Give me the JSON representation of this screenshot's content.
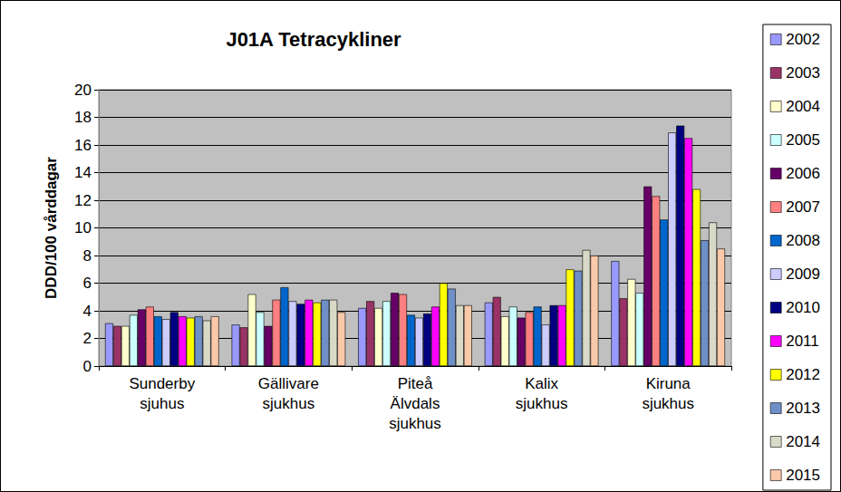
{
  "chart_data": {
    "type": "bar",
    "title": "J01A Tetracykliner",
    "ylabel": "DDD/100 vårddagar",
    "categories": [
      "Sunderby\nsjuhus",
      "Gällivare\nsjukhus",
      "Piteå\nÄlvdals\nsjukhus",
      "Kalix\nsjukhus",
      "Kiruna\nsjukhus"
    ],
    "series": [
      {
        "name": "2002",
        "color": "#9999FF",
        "values": [
          3.1,
          3.0,
          4.2,
          4.6,
          7.6
        ]
      },
      {
        "name": "2003",
        "color": "#993366",
        "values": [
          2.9,
          2.8,
          4.7,
          5.0,
          4.9
        ]
      },
      {
        "name": "2004",
        "color": "#FFFFCC",
        "values": [
          2.9,
          5.2,
          4.2,
          3.6,
          6.3
        ]
      },
      {
        "name": "2005",
        "color": "#CCFFFF",
        "values": [
          3.7,
          3.9,
          4.7,
          4.3,
          5.3
        ]
      },
      {
        "name": "2006",
        "color": "#660066",
        "values": [
          4.1,
          2.9,
          5.3,
          3.5,
          13.0
        ]
      },
      {
        "name": "2007",
        "color": "#FF8080",
        "values": [
          4.3,
          4.8,
          5.2,
          3.9,
          12.3
        ]
      },
      {
        "name": "2008",
        "color": "#0066CC",
        "values": [
          3.6,
          5.7,
          3.7,
          4.3,
          10.6
        ]
      },
      {
        "name": "2009",
        "color": "#CCCCFF",
        "values": [
          3.4,
          4.7,
          3.5,
          3.0,
          16.9
        ]
      },
      {
        "name": "2010",
        "color": "#000080",
        "values": [
          3.9,
          4.5,
          3.8,
          4.4,
          17.4
        ]
      },
      {
        "name": "2011",
        "color": "#FF00FF",
        "values": [
          3.6,
          4.8,
          4.3,
          4.4,
          16.5
        ]
      },
      {
        "name": "2012",
        "color": "#FFFF00",
        "values": [
          3.5,
          4.6,
          6.0,
          7.0,
          12.8
        ]
      },
      {
        "name": "2013",
        "color": "#6F8FC7",
        "values": [
          3.6,
          4.8,
          5.6,
          6.9,
          9.1
        ]
      },
      {
        "name": "2014",
        "color": "#D9D9C8",
        "values": [
          3.3,
          4.8,
          4.4,
          8.4,
          10.4
        ]
      },
      {
        "name": "2015",
        "color": "#F9C9A9",
        "values": [
          3.6,
          3.9,
          4.4,
          8.0,
          8.5
        ]
      }
    ],
    "ylim": [
      0,
      20
    ],
    "yticks": [
      0,
      2,
      4,
      6,
      8,
      10,
      12,
      14,
      16,
      18,
      20
    ],
    "grid": true,
    "legend": "right"
  }
}
